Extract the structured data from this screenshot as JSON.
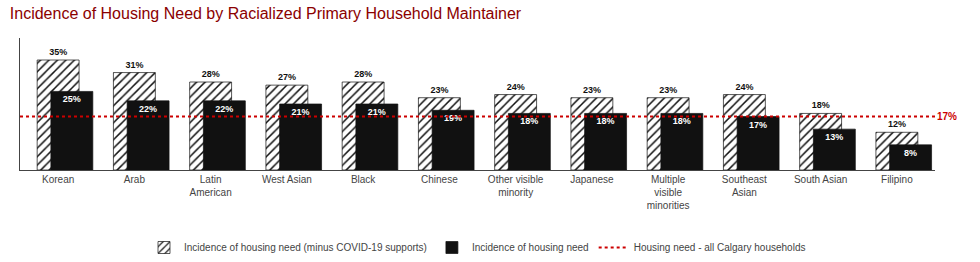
{
  "chart_data": {
    "type": "bar",
    "title": "Incidence of Housing Need by Racialized Primary Household Maintainer",
    "title_color": "#8B0000",
    "categories": [
      "Korean",
      "Arab",
      "Latin\nAmerican",
      "West Asian",
      "Black",
      "Chinese",
      "Other visible\nminority",
      "Japanese",
      "Multiple\nvisible\nminorities",
      "Southeast\nAsian",
      "South Asian",
      "Filipino"
    ],
    "series": [
      {
        "name": "Incidence of housing need (minus COVID-19 supports)",
        "color": "#ffffff",
        "edge_color": "#111111",
        "marker": "hatched",
        "values": [
          35,
          31,
          28,
          27,
          28,
          23,
          24,
          23,
          23,
          24,
          18,
          12
        ],
        "value_labels": [
          "35%",
          "31%",
          "28%",
          "27%",
          "28%",
          "23%",
          "24%",
          "23%",
          "23%",
          "24%",
          "18%",
          "12%"
        ]
      },
      {
        "name": "Incidence of housing need",
        "color": "#111111",
        "values": [
          25,
          22,
          22,
          21,
          21,
          19,
          18,
          18,
          18,
          17,
          13,
          8
        ],
        "value_labels": [
          "25%",
          "22%",
          "22%",
          "21%",
          "21%",
          "19%",
          "18%",
          "18%",
          "18%",
          "17%",
          "13%",
          "8%"
        ]
      }
    ],
    "reference_lines": [
      {
        "name": "Housing need - all Calgary households",
        "value": 17,
        "label": "17%",
        "color": "#cc0000",
        "line_style": "dotted"
      }
    ],
    "ylim": [
      0,
      42
    ],
    "yticks": [],
    "grid": false,
    "legend": "bottom",
    "data_labels": true,
    "tick_labels": "x"
  }
}
